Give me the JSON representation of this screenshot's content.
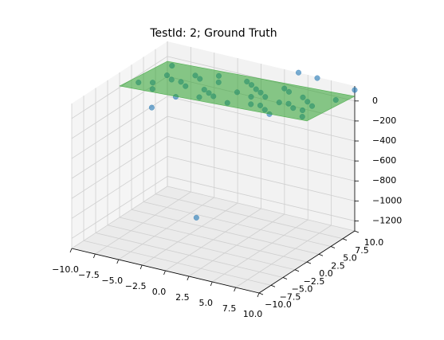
{
  "chart_data": {
    "type": "scatter3d",
    "title": "TestId: 2; Ground Truth",
    "x": [
      -9,
      -8,
      -7,
      -6,
      -5,
      -4,
      -3,
      -2,
      -1,
      0,
      1,
      2,
      3,
      4,
      5,
      6,
      7,
      8,
      9,
      -8,
      -6,
      -4,
      -2,
      0,
      2,
      4,
      6,
      8,
      9,
      -9,
      -5,
      -1,
      1,
      3,
      5,
      7,
      -7,
      3,
      -3,
      6,
      -3.5,
      -1.8,
      10,
      4,
      6
    ],
    "y": [
      2,
      6,
      1,
      8,
      4,
      0,
      7,
      3,
      9,
      5,
      1,
      6,
      2,
      8,
      4,
      0,
      6,
      3,
      8,
      3,
      5,
      9,
      1,
      8,
      4,
      2,
      7,
      5,
      1,
      9,
      7,
      2,
      7,
      9,
      1,
      3,
      5,
      5,
      4,
      4,
      -6,
      0,
      10,
      10,
      10
    ],
    "z": [
      10,
      -20,
      20,
      -40,
      0,
      40,
      -10,
      30,
      -20,
      20,
      60,
      30,
      60,
      20,
      60,
      90,
      50,
      80,
      50,
      0,
      -10,
      -30,
      50,
      0,
      50,
      70,
      40,
      60,
      100,
      -40,
      -20,
      50,
      10,
      0,
      80,
      80,
      -10,
      40,
      10,
      70,
      130,
      -1120,
      110,
      150,
      140
    ],
    "color": "#1f77b4",
    "surface": {
      "x": [
        -10,
        10
      ],
      "y": [
        0,
        10
      ],
      "z": [
        [
          15,
          -49
        ],
        [
          111,
          47
        ]
      ],
      "color": "#2ca02c"
    },
    "xlim": [
      -10,
      10
    ],
    "ylim": [
      -10,
      10
    ],
    "zlim": [
      -1300,
      150
    ],
    "xticks": [
      {
        "value": -10,
        "label": "−10.0"
      },
      {
        "value": -7.5,
        "label": "−7.5"
      },
      {
        "value": -5,
        "label": "−5.0"
      },
      {
        "value": -2.5,
        "label": "−2.5"
      },
      {
        "value": 0,
        "label": "0.0"
      },
      {
        "value": 2.5,
        "label": "2.5"
      },
      {
        "value": 5,
        "label": "5.0"
      },
      {
        "value": 7.5,
        "label": "7.5"
      },
      {
        "value": 10,
        "label": "10.0"
      }
    ],
    "yticks": [
      {
        "value": -10,
        "label": "−10.0"
      },
      {
        "value": -7.5,
        "label": "−7.5"
      },
      {
        "value": -5,
        "label": "−5.0"
      },
      {
        "value": -2.5,
        "label": "−2.5"
      },
      {
        "value": 0,
        "label": "0.0"
      },
      {
        "value": 2.5,
        "label": "2.5"
      },
      {
        "value": 5,
        "label": "5.0"
      },
      {
        "value": 7.5,
        "label": "7.5"
      },
      {
        "value": 10,
        "label": "10.0"
      }
    ],
    "zticks": [
      0,
      {
        "value": -200,
        "label": "−200"
      },
      {
        "value": -400,
        "label": "−400"
      },
      {
        "value": -600,
        "label": "−600"
      },
      {
        "value": -800,
        "label": "−800"
      },
      {
        "value": -1000,
        "label": "−1000"
      },
      {
        "value": -1200,
        "label": "−1200"
      }
    ],
    "grid": true
  }
}
